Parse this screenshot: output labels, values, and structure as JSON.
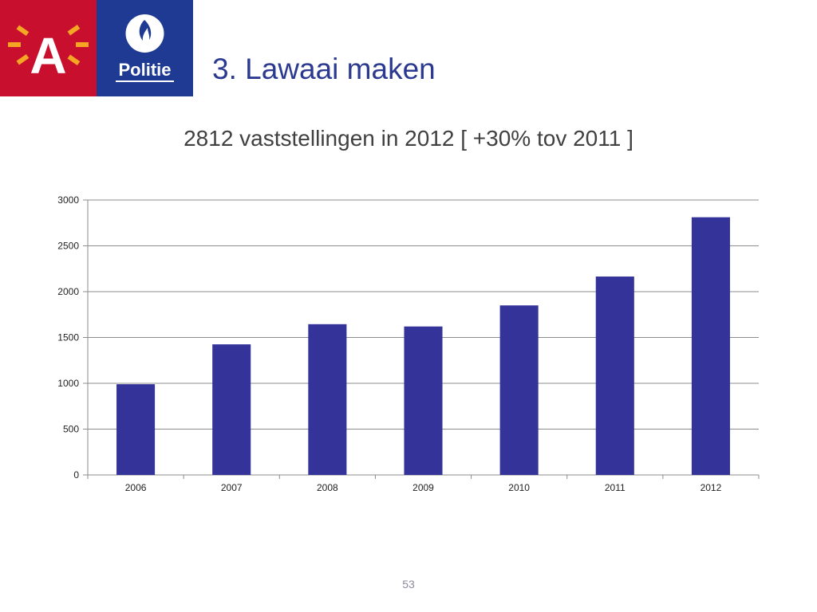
{
  "logos": {
    "antwerp": {
      "letter": "A",
      "color": "#c8102e"
    },
    "police": {
      "label": "Politie",
      "color": "#1f3a93"
    }
  },
  "slide": {
    "title": "3. Lawaai maken",
    "subtitle": "2812 vaststellingen in 2012 [ +30% tov 2011 ]",
    "page_number": "53"
  },
  "colors": {
    "bar": "#333399",
    "grid": "#8c8c8c",
    "title": "#2b3990"
  },
  "chart_data": {
    "type": "bar",
    "categories": [
      "2006",
      "2007",
      "2008",
      "2009",
      "2010",
      "2011",
      "2012"
    ],
    "values": [
      990,
      1425,
      1645,
      1620,
      1850,
      2165,
      2812
    ],
    "ylim": [
      0,
      3000
    ],
    "yticks": [
      0,
      500,
      1000,
      1500,
      2000,
      2500,
      3000
    ],
    "grid": true,
    "legend": "none"
  }
}
